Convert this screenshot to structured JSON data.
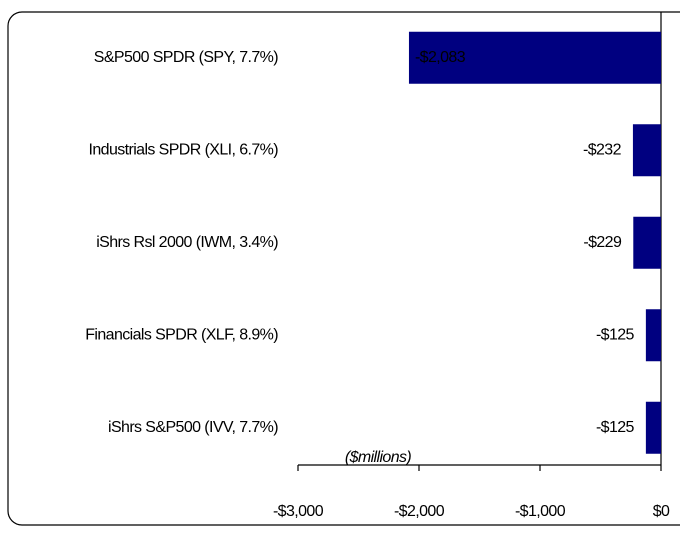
{
  "chart_data": {
    "type": "bar",
    "orientation": "horizontal",
    "categories": [
      "S&P500 SPDR (SPY, 7.7%)",
      "Industrials SPDR (XLI, 6.7%)",
      "iShrs Rsl 2000 (IWM, 3.4%)",
      "Financials SPDR (XLF, 8.9%)",
      "iShrs S&P500 (IVV, 7.7%)"
    ],
    "values": [
      -2083,
      -232,
      -229,
      -125,
      -125
    ],
    "value_labels": [
      "-$2,083",
      "-$232",
      "-$229",
      "-$125",
      "-$125"
    ],
    "color": "#000080",
    "xlabel": "($millions)",
    "xlim": [
      -3000,
      0
    ],
    "xticks": [
      {
        "value": -3000,
        "label": "-$3,000"
      },
      {
        "value": -2000,
        "label": "-$2,000"
      },
      {
        "value": -1000,
        "label": "-$1,000"
      },
      {
        "value": 0,
        "label": "$0"
      }
    ]
  }
}
